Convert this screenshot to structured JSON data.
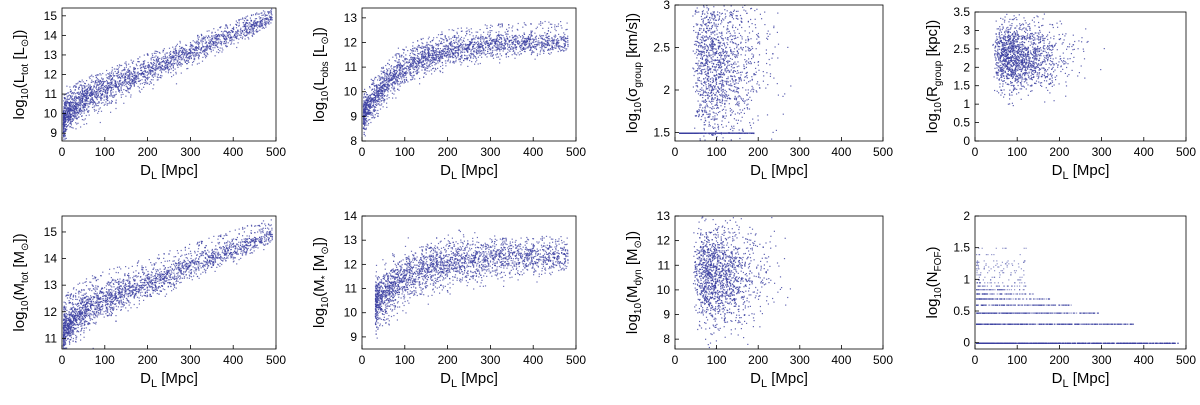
{
  "figure": {
    "description_axis_unit": "D_L [Mpc]",
    "point_color": "#3b3fa0"
  },
  "chart_data": [
    {
      "type": "scatter",
      "xlabel": "D_L [Mpc]",
      "ylabel": "log10(L_tot [L_sun])",
      "ylabel_base": "log",
      "ylabel_sub": "10",
      "ylabel_main": "(L",
      "ylabel_main_sub": "tot",
      "ylabel_rest": " [L",
      "ylabel_sym": "⊙",
      "ylabel_end": "])",
      "xlim": [
        0,
        500
      ],
      "ylim": [
        8.6,
        15.4
      ],
      "xticks": [
        0,
        100,
        200,
        300,
        400,
        500
      ],
      "yticks": [
        9,
        10,
        11,
        12,
        13,
        14,
        15
      ],
      "trend": {
        "kind": "rise",
        "x_min": 2,
        "x_max": 490,
        "y0": 9.4,
        "y_mid": 11.2,
        "y_end": 14.9,
        "spread": 0.45,
        "upper_scatter": 1.2
      }
    },
    {
      "type": "scatter",
      "xlabel": "D_L [Mpc]",
      "ylabel": "log10(L_obs [L_sun])",
      "ylabel_base": "log",
      "ylabel_sub": "10",
      "ylabel_main": "(L",
      "ylabel_main_sub": "obs",
      "ylabel_rest": " [L",
      "ylabel_sym": "⊙",
      "ylabel_end": "])",
      "xlim": [
        0,
        500
      ],
      "ylim": [
        8,
        13.4
      ],
      "xticks": [
        0,
        100,
        200,
        300,
        400,
        500
      ],
      "yticks": [
        8,
        9,
        10,
        11,
        12,
        13
      ],
      "trend": {
        "kind": "saturate",
        "x_min": 2,
        "x_max": 480,
        "y0": 9.0,
        "y_end": 12.0,
        "spread": 0.35,
        "upper_scatter": 0.9
      }
    },
    {
      "type": "scatter",
      "xlabel": "D_L [Mpc]",
      "ylabel": "log10(sigma_group [km/s])",
      "ylabel_base": "log",
      "ylabel_sub": "10",
      "ylabel_main": "(σ",
      "ylabel_main_sub": "group",
      "ylabel_rest": " [km/s])",
      "ylabel_sym": "",
      "ylabel_end": "",
      "xlim": [
        0,
        500
      ],
      "ylim": [
        1.4,
        3.0
      ],
      "xticks": [
        0,
        100,
        200,
        300,
        400,
        500
      ],
      "yticks": [
        1.5,
        2,
        2.5,
        3
      ],
      "trend": {
        "kind": "cloud",
        "x_min": 10,
        "x_max": 350,
        "y_center": 2.3,
        "y_spread": 0.45,
        "floor_line": 1.5
      }
    },
    {
      "type": "scatter",
      "xlabel": "D_L [Mpc]",
      "ylabel": "log10(R_group [kpc])",
      "ylabel_base": "log",
      "ylabel_sub": "10",
      "ylabel_main": "(R",
      "ylabel_main_sub": "group",
      "ylabel_rest": " [kpc])",
      "ylabel_sym": "",
      "ylabel_end": "",
      "xlim": [
        0,
        500
      ],
      "ylim": [
        0,
        3.5
      ],
      "xticks": [
        0,
        100,
        200,
        300,
        400,
        500
      ],
      "yticks": [
        0,
        0.5,
        1,
        1.5,
        2,
        2.5,
        3,
        3.5
      ],
      "trend": {
        "kind": "cloud",
        "x_min": 5,
        "x_max": 360,
        "y_center": 2.3,
        "y_spread": 0.45
      }
    },
    {
      "type": "scatter",
      "xlabel": "D_L [Mpc]",
      "ylabel": "log10(M_tot [M_sun])",
      "ylabel_base": "log",
      "ylabel_sub": "10",
      "ylabel_main": "(M",
      "ylabel_main_sub": "tot",
      "ylabel_rest": " [M",
      "ylabel_sym": "⊙",
      "ylabel_end": "])",
      "xlim": [
        0,
        500
      ],
      "ylim": [
        10.6,
        15.6
      ],
      "xticks": [
        0,
        100,
        200,
        300,
        400,
        500
      ],
      "yticks": [
        11,
        12,
        13,
        14,
        15
      ],
      "trend": {
        "kind": "rise",
        "x_min": 2,
        "x_max": 490,
        "y0": 11.0,
        "y_mid": 12.4,
        "y_end": 14.9,
        "spread": 0.35,
        "upper_scatter": 1.3
      }
    },
    {
      "type": "scatter",
      "xlabel": "D_L [Mpc]",
      "ylabel": "log10(M* [M_sun])",
      "ylabel_base": "log",
      "ylabel_sub": "10",
      "ylabel_main": "(M",
      "ylabel_main_sub": "*",
      "ylabel_rest": " [M",
      "ylabel_sym": "⊙",
      "ylabel_end": "])",
      "xlim": [
        0,
        500
      ],
      "ylim": [
        8.5,
        14
      ],
      "xticks": [
        0,
        100,
        200,
        300,
        400,
        500
      ],
      "yticks": [
        9,
        10,
        11,
        12,
        13,
        14
      ],
      "trend": {
        "kind": "saturate",
        "x_min": 30,
        "x_max": 480,
        "y0": 10.3,
        "y_end": 12.3,
        "spread": 0.55,
        "upper_scatter": 0.9
      }
    },
    {
      "type": "scatter",
      "xlabel": "D_L [Mpc]",
      "ylabel": "log10(M_dyn [M_sun])",
      "ylabel_base": "log",
      "ylabel_sub": "10",
      "ylabel_main": "(M",
      "ylabel_main_sub": "dyn",
      "ylabel_rest": " [M",
      "ylabel_sym": "⊙",
      "ylabel_end": "])",
      "xlim": [
        0,
        500
      ],
      "ylim": [
        7.6,
        13
      ],
      "xticks": [
        0,
        100,
        200,
        300,
        400,
        500
      ],
      "yticks": [
        8,
        9,
        10,
        11,
        12,
        13
      ],
      "trend": {
        "kind": "cloud",
        "x_min": 10,
        "x_max": 360,
        "y_center": 10.6,
        "y_spread": 1.0
      }
    },
    {
      "type": "scatter",
      "xlabel": "D_L [Mpc]",
      "ylabel": "log10(N_FOF)",
      "ylabel_base": "log",
      "ylabel_sub": "10",
      "ylabel_main": "(N",
      "ylabel_main_sub": "FOF",
      "ylabel_rest": ")",
      "ylabel_sym": "",
      "ylabel_end": "",
      "xlim": [
        0,
        500
      ],
      "ylim": [
        -0.1,
        2.0
      ],
      "xticks": [
        0,
        100,
        200,
        300,
        400,
        500
      ],
      "yticks": [
        0,
        0.5,
        1,
        1.5,
        2
      ],
      "trend": {
        "kind": "discrete",
        "x_min": 2,
        "x_max": 480,
        "levels": [
          0,
          0.301,
          0.477,
          0.602,
          0.699,
          0.778,
          0.845,
          0.903,
          0.954,
          1.0,
          1.041,
          1.079,
          1.114,
          1.146,
          1.176,
          1.204,
          1.23,
          1.255,
          1.279,
          1.301,
          1.4,
          1.5
        ]
      }
    }
  ]
}
